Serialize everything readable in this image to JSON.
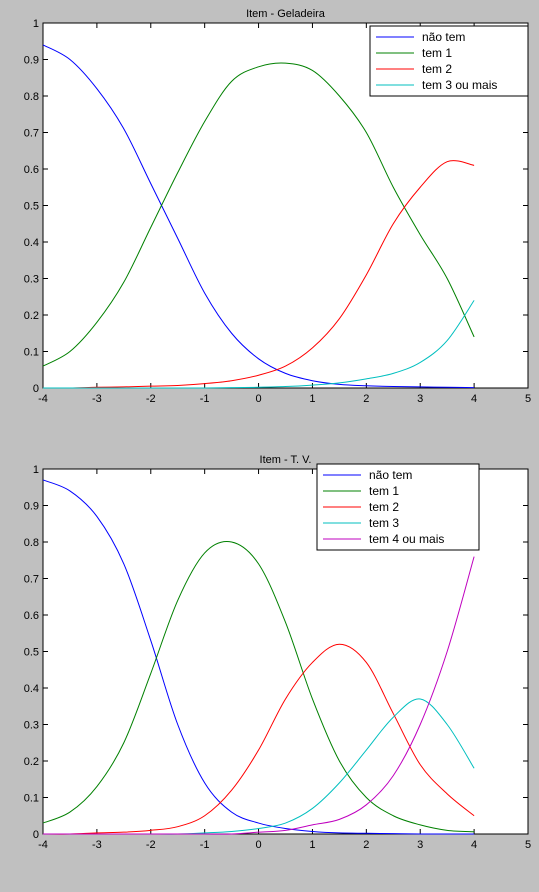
{
  "charts": [
    {
      "chart_data": {
        "type": "line",
        "title": "Item - Geladeira",
        "xlabel": "",
        "ylabel": "",
        "xlim": [
          -4,
          5
        ],
        "ylim": [
          0,
          1
        ],
        "xticks": [
          "-4",
          "-3",
          "-2",
          "-1",
          "0",
          "1",
          "2",
          "3",
          "4",
          "5"
        ],
        "yticks": [
          "0",
          "0.1",
          "0.2",
          "0.3",
          "0.4",
          "0.5",
          "0.6",
          "0.7",
          "0.8",
          "0.9",
          "1"
        ],
        "grid": false,
        "legend_position": "top-right",
        "x": [
          -4,
          -3.5,
          -3,
          -2.5,
          -2,
          -1.5,
          -1,
          -0.5,
          0,
          0.5,
          1,
          1.5,
          2,
          2.5,
          3,
          3.5,
          4
        ],
        "series": [
          {
            "name": "não tem",
            "color": "#0000ff",
            "values": [
              0.94,
              0.9,
              0.82,
              0.71,
              0.56,
              0.41,
              0.26,
              0.15,
              0.08,
              0.04,
              0.02,
              0.01,
              0.006,
              0.004,
              0.003,
              0.002,
              0.001
            ]
          },
          {
            "name": "tem 1",
            "color": "#008000",
            "values": [
              0.06,
              0.1,
              0.18,
              0.29,
              0.44,
              0.59,
              0.73,
              0.84,
              0.88,
              0.89,
              0.87,
              0.8,
              0.7,
              0.55,
              0.42,
              0.3,
              0.14
            ]
          },
          {
            "name": "tem 2",
            "color": "#ff0000",
            "values": [
              0.0,
              0.0,
              0.002,
              0.003,
              0.005,
              0.007,
              0.012,
              0.02,
              0.035,
              0.06,
              0.11,
              0.19,
              0.31,
              0.45,
              0.55,
              0.62,
              0.61
            ]
          },
          {
            "name": "tem 3 ou mais",
            "color": "#00bfbf",
            "values": [
              0.0,
              0.0,
              0.0,
              0.0,
              0.0,
              0.0,
              0.0,
              0.001,
              0.002,
              0.004,
              0.008,
              0.014,
              0.025,
              0.04,
              0.07,
              0.13,
              0.24
            ]
          }
        ]
      }
    },
    {
      "chart_data": {
        "type": "line",
        "title": "Item - T. V.",
        "xlabel": "",
        "ylabel": "",
        "xlim": [
          -4,
          5
        ],
        "ylim": [
          0,
          1
        ],
        "xticks": [
          "-4",
          "-3",
          "-2",
          "-1",
          "0",
          "1",
          "2",
          "3",
          "4",
          "5"
        ],
        "yticks": [
          "0",
          "0.1",
          "0.2",
          "0.3",
          "0.4",
          "0.5",
          "0.6",
          "0.7",
          "0.8",
          "0.9",
          "1"
        ],
        "grid": false,
        "legend_position": "top-right",
        "x": [
          -4,
          -3.5,
          -3,
          -2.5,
          -2,
          -1.5,
          -1,
          -0.5,
          0,
          0.5,
          1,
          1.5,
          2,
          2.5,
          3,
          3.5,
          4
        ],
        "series": [
          {
            "name": "não tem",
            "color": "#0000ff",
            "values": [
              0.97,
              0.94,
              0.87,
              0.74,
              0.53,
              0.3,
              0.14,
              0.06,
              0.03,
              0.015,
              0.007,
              0.003,
              0.002,
              0.001,
              0.0,
              0.0,
              0.0
            ]
          },
          {
            "name": "tem 1",
            "color": "#008000",
            "values": [
              0.03,
              0.06,
              0.13,
              0.25,
              0.44,
              0.64,
              0.77,
              0.8,
              0.74,
              0.58,
              0.37,
              0.2,
              0.1,
              0.05,
              0.025,
              0.01,
              0.006
            ]
          },
          {
            "name": "tem 2",
            "color": "#ff0000",
            "values": [
              0.0,
              0.0,
              0.003,
              0.005,
              0.01,
              0.02,
              0.05,
              0.12,
              0.23,
              0.37,
              0.47,
              0.52,
              0.47,
              0.33,
              0.19,
              0.11,
              0.05
            ]
          },
          {
            "name": "tem 3",
            "color": "#00bfbf",
            "values": [
              0.0,
              0.0,
              0.0,
              0.0,
              0.0,
              0.0,
              0.003,
              0.007,
              0.015,
              0.03,
              0.07,
              0.14,
              0.23,
              0.32,
              0.37,
              0.3,
              0.18
            ]
          },
          {
            "name": "tem 4 ou mais",
            "color": "#bf00bf",
            "values": [
              0.0,
              0.0,
              0.0,
              0.0,
              0.0,
              0.0,
              0.0,
              0.0,
              0.005,
              0.01,
              0.025,
              0.04,
              0.08,
              0.16,
              0.3,
              0.5,
              0.76
            ]
          }
        ]
      }
    }
  ]
}
